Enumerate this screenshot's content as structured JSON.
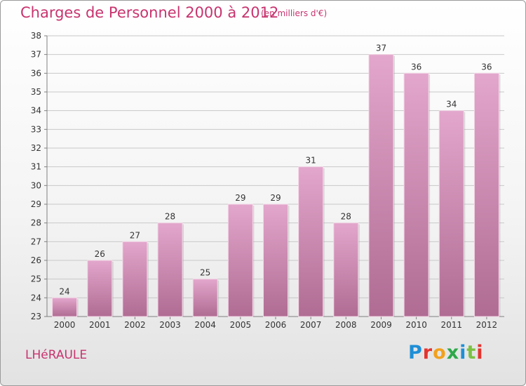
{
  "header": {
    "title": "Charges de Personnel 2000 à 2012",
    "subtitle": "(en milliers d'€)"
  },
  "footer": {
    "commune": "LHéRAULE",
    "brand": "Proxiti",
    "brand_colors": [
      "#1f8fd6",
      "#e3342f",
      "#f2a11d",
      "#2ea84a",
      "#1f8fd6",
      "#7ac142",
      "#e3342f"
    ]
  },
  "colors": {
    "bar_top": "#e3a6cc",
    "bar_bottom": "#b06c93",
    "axis": "#808080",
    "grid": "#c8c8c8",
    "text": "#333333",
    "accent": "#c8336e"
  },
  "chart_data": {
    "type": "bar",
    "categories": [
      "2000",
      "2001",
      "2002",
      "2003",
      "2004",
      "2005",
      "2006",
      "2007",
      "2008",
      "2009",
      "2010",
      "2011",
      "2012"
    ],
    "values": [
      24,
      26,
      27,
      28,
      25,
      29,
      29,
      31,
      28,
      37,
      36,
      34,
      36
    ],
    "ylim": [
      23,
      38
    ],
    "yticks": [
      23,
      24,
      25,
      26,
      27,
      28,
      29,
      30,
      31,
      32,
      33,
      34,
      35,
      36,
      37,
      38
    ],
    "grid": true,
    "data_labels": true
  }
}
